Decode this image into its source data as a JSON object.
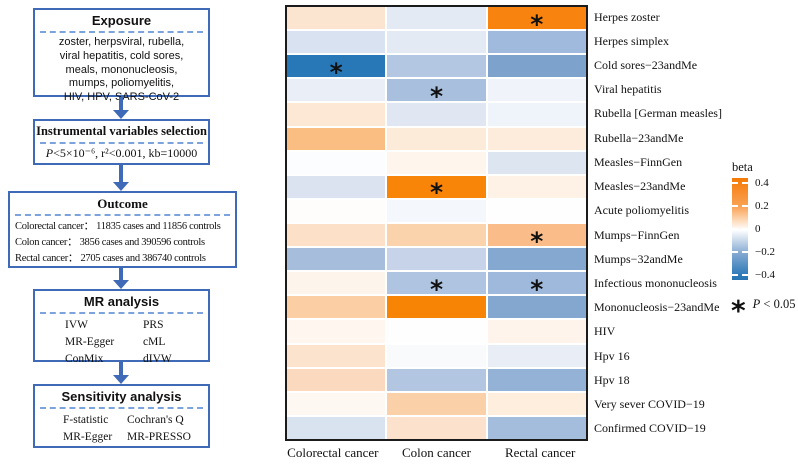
{
  "flowchart": {
    "exposure": {
      "title": "Exposure",
      "lines": [
        "zoster, herpsviral, rubella,",
        "viral hepatitis, cold sores,",
        "meals, mononucleosis,",
        "mumps, poliomyelitis,",
        "HIV, HPV, SARS-CoV-2"
      ]
    },
    "iv_selection": {
      "title": "Instrumental variables selection",
      "formula_p": "P",
      "formula_rest": "<5×10⁻⁶, r²<0.001, kb=10000"
    },
    "outcome": {
      "title": "Outcome",
      "lines": [
        "Colorectal cancer： 11835 cases and 11856 controls",
        "Colon cancer： 3856 cases and 390596 controls",
        "Rectal cancer： 2705 cases and 386740 controls"
      ]
    },
    "mr_analysis": {
      "title": "MR analysis",
      "left": [
        "IVW",
        "MR-Egger",
        "ConMix"
      ],
      "right": [
        "PRS",
        "cML",
        "dIVW"
      ]
    },
    "sensitivity": {
      "title": "Sensitivity analysis",
      "left": [
        "F-statistic",
        "MR-Egger"
      ],
      "right": [
        "Cochran's Q",
        "MR-PRESSO"
      ]
    }
  },
  "chart_data": {
    "type": "heatmap",
    "columns": [
      "Colorectal cancer",
      "Colon cancer",
      "Rectal cancer"
    ],
    "rows": [
      {
        "label": "Herpes zoster",
        "values": [
          0.06,
          -0.06,
          0.45
        ],
        "colors": [
          "#FCE5D0",
          "#E4EAF4",
          "#F8830E"
        ],
        "sig": [
          false,
          false,
          true
        ]
      },
      {
        "label": "Herpes simplex",
        "values": [
          -0.09,
          -0.06,
          -0.25
        ],
        "colors": [
          "#D9E2F0",
          "#E4EAF4",
          "#9FBADC"
        ],
        "sig": [
          false,
          false,
          false
        ]
      },
      {
        "label": "Cold sores−23andMe",
        "values": [
          -0.48,
          -0.17,
          -0.33
        ],
        "colors": [
          "#2878B8",
          "#B3C6E2",
          "#7DA2CC"
        ],
        "sig": [
          true,
          false,
          false
        ]
      },
      {
        "label": "Viral hepatitis",
        "values": [
          -0.05,
          -0.22,
          -0.03
        ],
        "colors": [
          "#E9EEF7",
          "#A8BFDE",
          "#F0F4FA"
        ],
        "sig": [
          false,
          true,
          false
        ]
      },
      {
        "label": "Rubella [German measles]",
        "values": [
          0.05,
          -0.07,
          -0.03
        ],
        "colors": [
          "#FDE8D5",
          "#E0E7F2",
          "#EFF3FA"
        ],
        "sig": [
          false,
          false,
          false
        ]
      },
      {
        "label": "Rubella−23andMe",
        "values": [
          0.2,
          0.05,
          0.05
        ],
        "colors": [
          "#FABD82",
          "#FDEBDA",
          "#FDEBDB"
        ],
        "sig": [
          false,
          false,
          false
        ]
      },
      {
        "label": "Measles−FinnGen",
        "values": [
          0.0,
          0.02,
          -0.08
        ],
        "colors": [
          "#FBFDFE",
          "#FEF5EC",
          "#DDE5F1"
        ],
        "sig": [
          false,
          false,
          false
        ]
      },
      {
        "label": "Measles−23andMe",
        "values": [
          -0.08,
          0.45,
          0.03
        ],
        "colors": [
          "#DCE3F0",
          "#F88408",
          "#FEF2E6"
        ],
        "sig": [
          false,
          true,
          false
        ]
      },
      {
        "label": "Acute poliomyelitis",
        "values": [
          0.01,
          -0.02,
          0.0
        ],
        "colors": [
          "#FEFDFB",
          "#F4F7FB",
          "#FEFEFF"
        ],
        "sig": [
          false,
          false,
          false
        ]
      },
      {
        "label": "Mumps−FinnGen",
        "values": [
          0.07,
          0.11,
          0.19
        ],
        "colors": [
          "#FCE0C7",
          "#FAD3AC",
          "#FABD8A"
        ],
        "sig": [
          false,
          false,
          true
        ]
      },
      {
        "label": "Mumps−32andMe",
        "values": [
          -0.23,
          -0.13,
          -0.31
        ],
        "colors": [
          "#A6BDDC",
          "#C6D3E8",
          "#85A8D0"
        ],
        "sig": [
          false,
          false,
          false
        ]
      },
      {
        "label": "Infectious mononucleosis",
        "values": [
          0.03,
          -0.2,
          -0.26
        ],
        "colors": [
          "#FDF4EC",
          "#AEC4E0",
          "#9EB9DB"
        ],
        "sig": [
          false,
          true,
          true
        ]
      },
      {
        "label": "Mononucleosis−23andMe",
        "values": [
          0.12,
          0.45,
          -0.31
        ],
        "colors": [
          "#FBCFA3",
          "#F88406",
          "#84A7D0"
        ],
        "sig": [
          false,
          false,
          false
        ]
      },
      {
        "label": "HIV",
        "values": [
          0.02,
          0.0,
          0.03
        ],
        "colors": [
          "#FEF6EF",
          "#FEFEFE",
          "#FEF4EB"
        ],
        "sig": [
          false,
          false,
          false
        ]
      },
      {
        "label": "Hpv 16",
        "values": [
          0.06,
          -0.01,
          -0.05
        ],
        "colors": [
          "#FCE3CD",
          "#F8FAFC",
          "#E9EEF6"
        ],
        "sig": [
          false,
          false,
          false
        ]
      },
      {
        "label": "Hpv 18",
        "values": [
          0.09,
          -0.17,
          -0.28
        ],
        "colors": [
          "#FBD9BE",
          "#B2C5E1",
          "#94B1D6"
        ],
        "sig": [
          false,
          false,
          false
        ]
      },
      {
        "label": "Very sever COVID−19",
        "values": [
          0.02,
          0.13,
          0.04
        ],
        "colors": [
          "#FEF8F2",
          "#FAD0A8",
          "#FDEEDD"
        ],
        "sig": [
          false,
          false,
          false
        ]
      },
      {
        "label": "Confirmed COVID−19",
        "values": [
          -0.1,
          0.07,
          -0.24
        ],
        "colors": [
          "#D9E2EF",
          "#FCE2CC",
          "#A4BDDD"
        ],
        "sig": [
          false,
          false,
          false
        ]
      }
    ],
    "legend": {
      "title": "beta",
      "tick_labels": [
        "0.4",
        "0.2",
        "0",
        "−0.2",
        "−0.4"
      ],
      "tick_values": [
        0.4,
        0.2,
        0,
        -0.2,
        -0.4
      ],
      "tick_pos": [
        5,
        27.5,
        50,
        72.5,
        95
      ],
      "range": [
        -0.45,
        0.45
      ],
      "gradient_stops": [
        [
          "#F57A06",
          0
        ],
        [
          "#F68114",
          5
        ],
        [
          "#F9A355",
          28
        ],
        [
          "#FFFFFF",
          51
        ],
        [
          "#83A9D1",
          74
        ],
        [
          "#2D7AB8",
          95
        ],
        [
          "#2874B3",
          100
        ]
      ]
    },
    "sig_symbol": "*",
    "sig_note_p": "P",
    "sig_note_rest": " < 0.05"
  },
  "colors": {
    "flow_border": "#3f6ab8",
    "flow_dash": "#7ca3dc",
    "panel_border": "#1b1b1b",
    "high": "#F8830E",
    "low": "#2878B8"
  }
}
